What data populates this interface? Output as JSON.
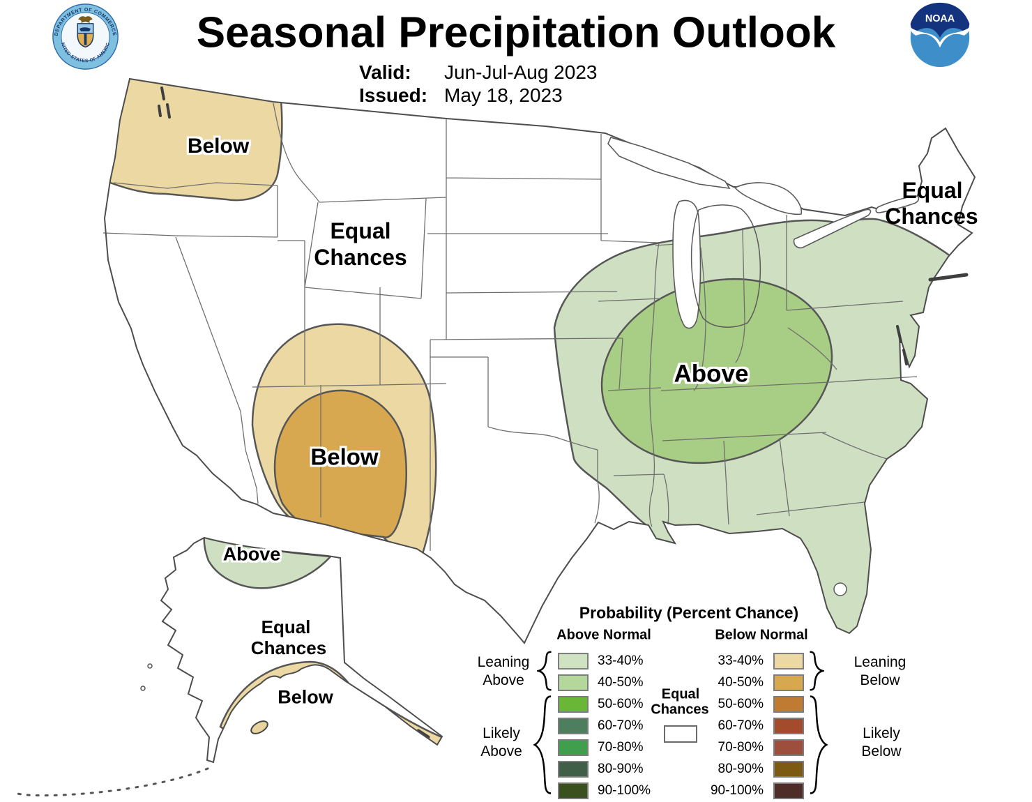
{
  "header": {
    "title": "Seasonal Precipitation Outlook",
    "valid_label": "Valid:",
    "valid_value": "Jun-Jul-Aug 2023",
    "issued_label": "Issued:",
    "issued_value": "May 18, 2023"
  },
  "logos": {
    "noaa_text": "NOAA",
    "doc_seal_top": "DEPARTMENT OF COMMERCE",
    "doc_seal_bottom": "UNITED STATES OF AMERICA"
  },
  "map": {
    "labels": {
      "pnw_below": "Below",
      "west_equal_line1": "Equal",
      "west_equal_line2": "Chances",
      "sw_below": "Below",
      "east_above": "Above",
      "ne_equal_line1": "Equal",
      "ne_equal_line2": "Chances",
      "ak_above": "Above",
      "ak_equal_line1": "Equal",
      "ak_equal_line2": "Chances",
      "ak_below": "Below"
    },
    "region_fills": {
      "below_33_40": "#ecd8a2",
      "below_40_50": "#d8a851",
      "above_33_40": "#cfe0c2",
      "above_40_50": "#a8cd85",
      "equal_chances": "#ffffff"
    }
  },
  "legend": {
    "title": "Probability (Percent Chance)",
    "above_normal_header": "Above Normal",
    "below_normal_header": "Below Normal",
    "equal_line1": "Equal",
    "equal_line2": "Chances",
    "above_rows": [
      {
        "range": "33-40%",
        "color": "#cfe3c3"
      },
      {
        "range": "40-50%",
        "color": "#b4d89b"
      },
      {
        "range": "50-60%",
        "color": "#6ab637"
      },
      {
        "range": "60-70%",
        "color": "#4d7f5f"
      },
      {
        "range": "70-80%",
        "color": "#3f9f4d"
      },
      {
        "range": "80-90%",
        "color": "#3f5f49"
      },
      {
        "range": "90-100%",
        "color": "#3a511f"
      }
    ],
    "below_rows": [
      {
        "range": "33-40%",
        "color": "#ecd8a2"
      },
      {
        "range": "40-50%",
        "color": "#d8a851"
      },
      {
        "range": "50-60%",
        "color": "#c07b33"
      },
      {
        "range": "60-70%",
        "color": "#a34b2b"
      },
      {
        "range": "70-80%",
        "color": "#9d4e3c"
      },
      {
        "range": "80-90%",
        "color": "#7d5a12"
      },
      {
        "range": "90-100%",
        "color": "#4e2c27"
      }
    ],
    "leaning_above_line1": "Leaning",
    "leaning_above_line2": "Above",
    "likely_above_line1": "Likely",
    "likely_above_line2": "Above",
    "leaning_below_line1": "Leaning",
    "leaning_below_line2": "Below",
    "likely_below_line1": "Likely",
    "likely_below_line2": "Below"
  }
}
